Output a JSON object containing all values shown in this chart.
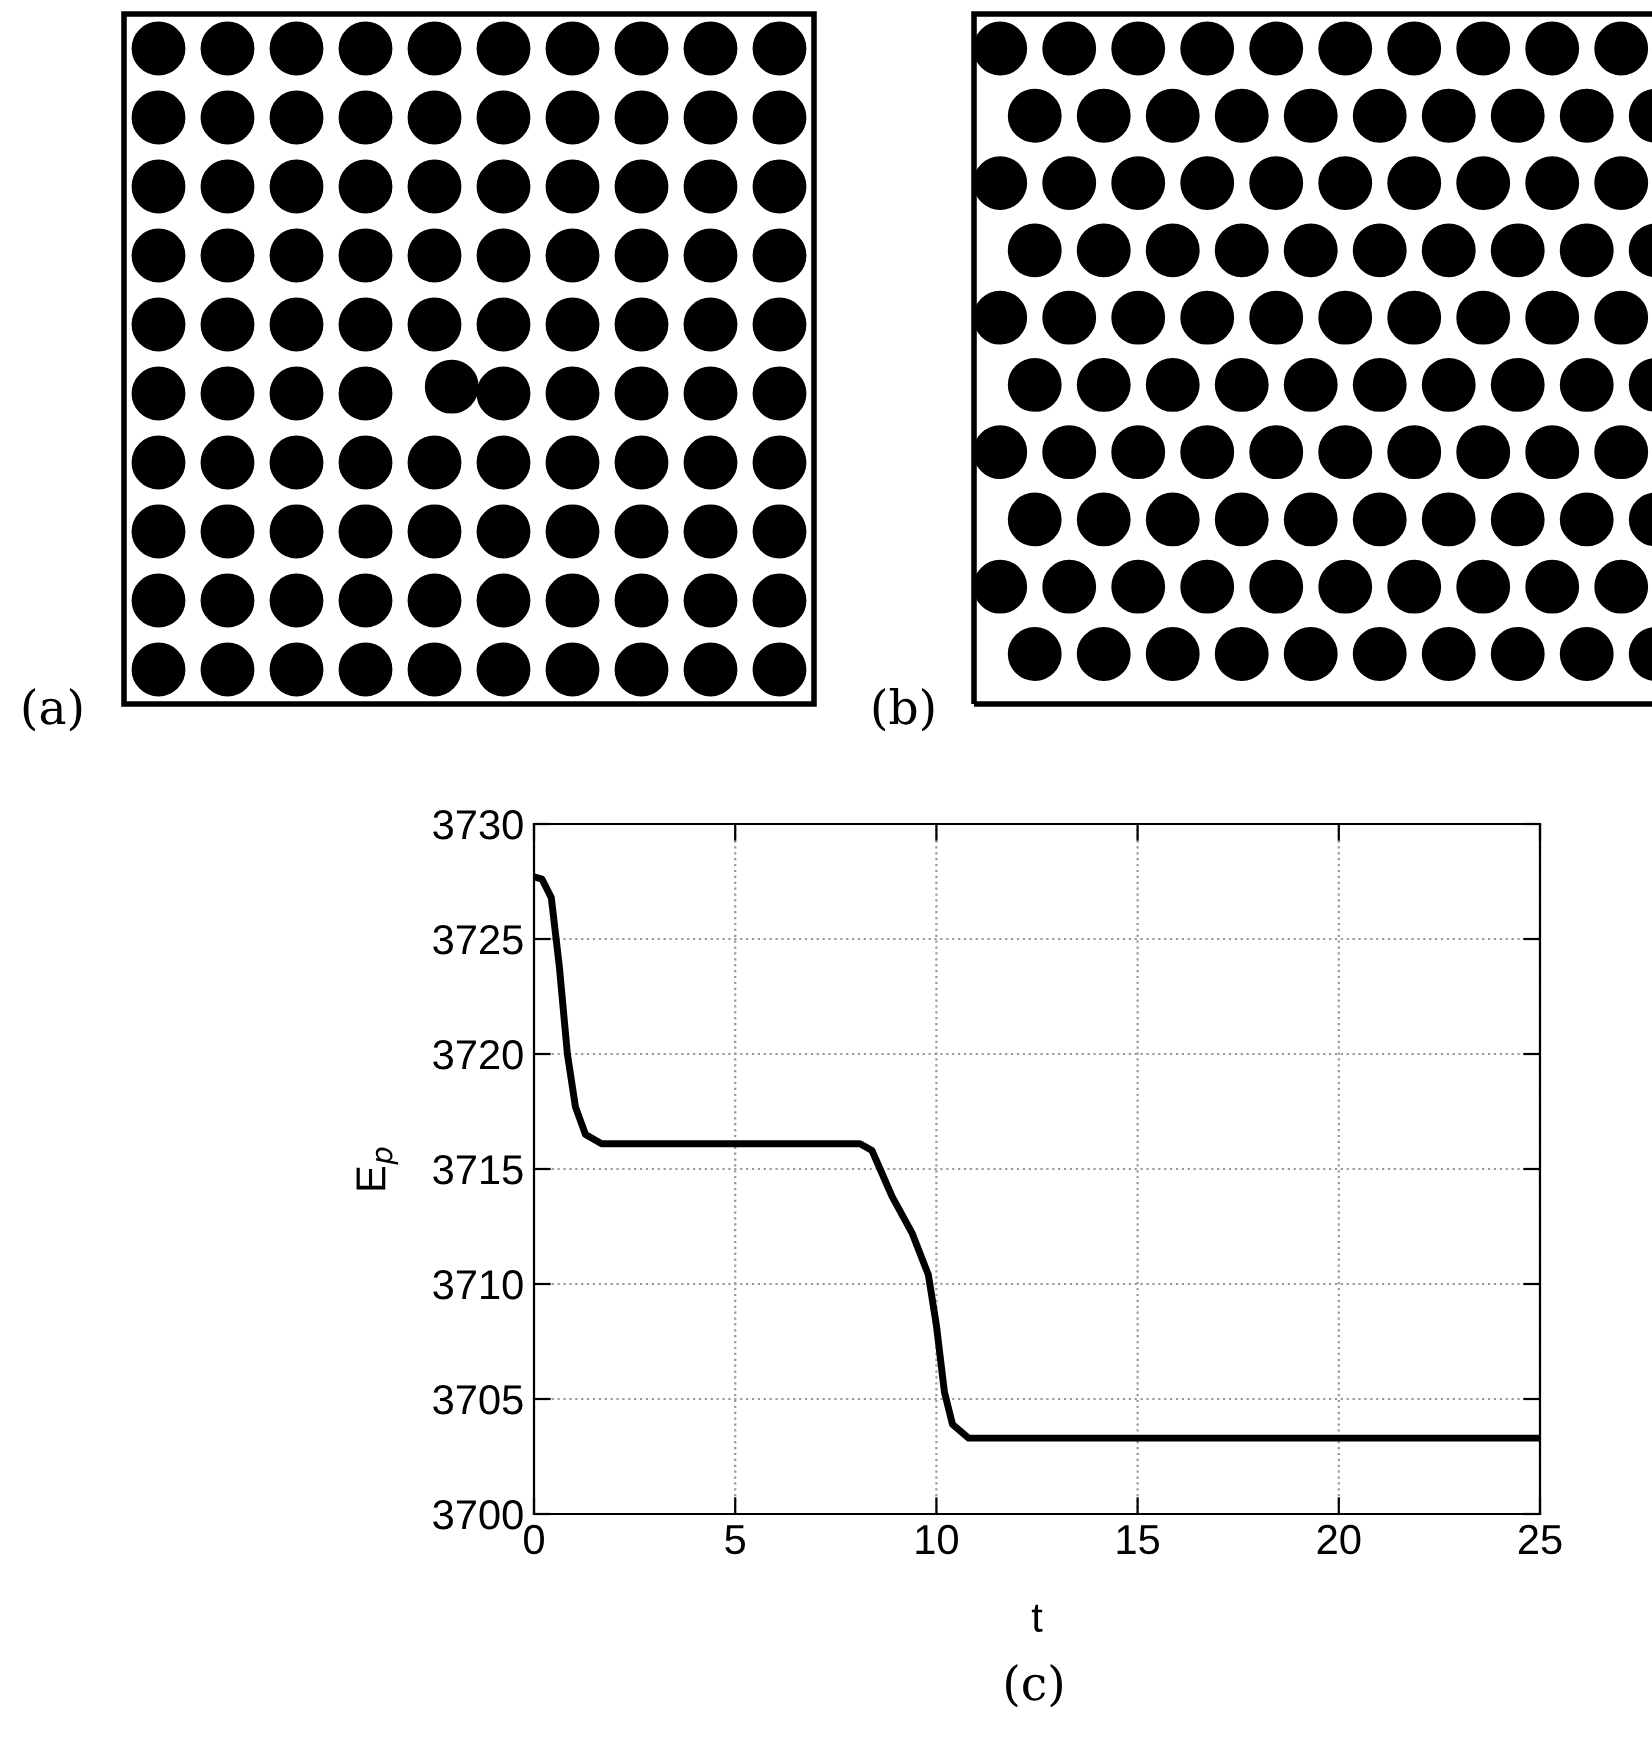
{
  "chart_data": [
    {
      "type": "other",
      "annotations": [
        "(a)"
      ]
    },
    {
      "type": "other",
      "annotations": [
        "(b)"
      ]
    },
    {
      "type": "line",
      "xlabel": "t",
      "ylabel": "E$_{p}$",
      "annotations": [
        "(c)"
      ],
      "xlim": [
        0,
        25
      ],
      "ylim": [
        3700,
        3730
      ],
      "xticks": [
        0,
        5,
        10,
        15,
        20,
        25
      ],
      "yticks": [
        3700,
        3705,
        3710,
        3715,
        3720,
        3725,
        3730
      ],
      "grid": true,
      "series": [
        {
          "color": "#000000",
          "x": [
            0,
            0.2,
            0.43,
            0.63,
            0.83,
            1.03,
            1.28,
            1.68,
            4.15,
            8.1,
            8.4,
            8.6,
            8.9,
            9.4,
            9.8,
            10.0,
            10.2,
            10.4,
            10.8,
            25
          ],
          "values": [
            3727.7,
            3727.6,
            3726.8,
            3723.8,
            3720.0,
            3717.7,
            3716.5,
            3716.1,
            3716.1,
            3716.1,
            3715.8,
            3715.0,
            3713.8,
            3712.2,
            3710.4,
            3708.2,
            3705.3,
            3703.9,
            3703.3,
            3703.3
          ]
        }
      ]
    }
  ]
}
